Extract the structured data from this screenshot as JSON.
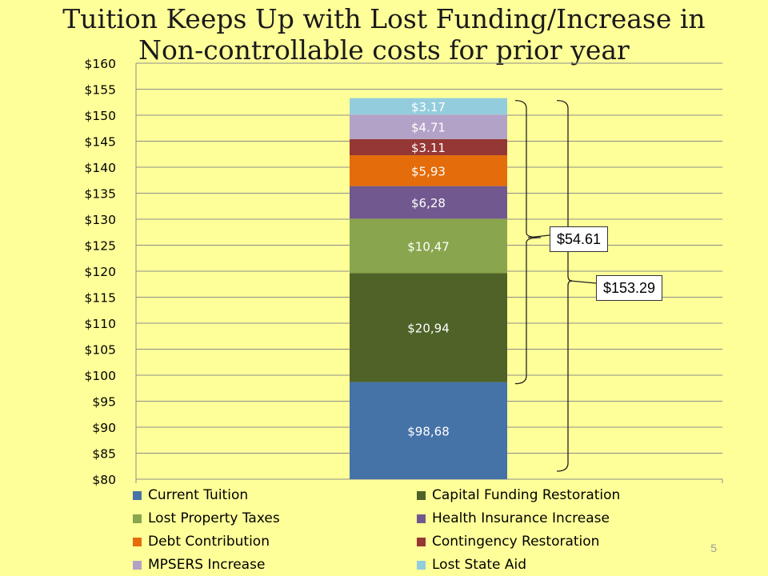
{
  "title_line1": "Tuition Keeps Up with Lost Funding/Increase in",
  "title_line2": "Non-controllable costs for prior year",
  "page_number": "5",
  "callouts": {
    "subtotal": "$54.61",
    "total": "$153.29"
  },
  "chart_data": {
    "type": "bar",
    "stacked": true,
    "title": "Tuition Keeps Up with Lost Funding/Increase in Non-controllable costs for prior year",
    "xlabel": "",
    "ylabel": "",
    "ylim": [
      80,
      160
    ],
    "y_ticks": [
      "$80",
      "$85",
      "$90",
      "$95",
      "$100",
      "$105",
      "$110",
      "$115",
      "$120",
      "$125",
      "$130",
      "$135",
      "$140",
      "$145",
      "$150",
      "$155",
      "$160"
    ],
    "grid": true,
    "legend_position": "bottom",
    "series": [
      {
        "name": "Current Tuition",
        "value": 98.68,
        "label": "$98,68",
        "color": "#4572a7"
      },
      {
        "name": "Capital Funding Restoration",
        "value": 20.94,
        "label": "$20,94",
        "color": "#4f6228"
      },
      {
        "name": "Lost Property Taxes",
        "value": 10.47,
        "label": "$10,47",
        "color": "#89a54e"
      },
      {
        "name": "Health Insurance Increase",
        "value": 6.28,
        "label": "$6,28",
        "color": "#71588f"
      },
      {
        "name": "Debt Contribution",
        "value": 5.93,
        "label": "$5,93",
        "color": "#e46c0a"
      },
      {
        "name": "Contingency Restoration",
        "value": 3.11,
        "label": "$3.11",
        "color": "#953735"
      },
      {
        "name": "MPSERS Increase",
        "value": 4.71,
        "label": "$4.71",
        "color": "#b3a2c7"
      },
      {
        "name": "Lost State Aid",
        "value": 3.17,
        "label": "$3.17",
        "color": "#93cddd"
      }
    ],
    "legend_order": [
      "Current Tuition",
      "Capital Funding Restoration",
      "Lost Property Taxes",
      "Health Insurance Increase",
      "Debt Contribution",
      "Contingency Restoration",
      "MPSERS Increase",
      "Lost State Aid"
    ]
  }
}
